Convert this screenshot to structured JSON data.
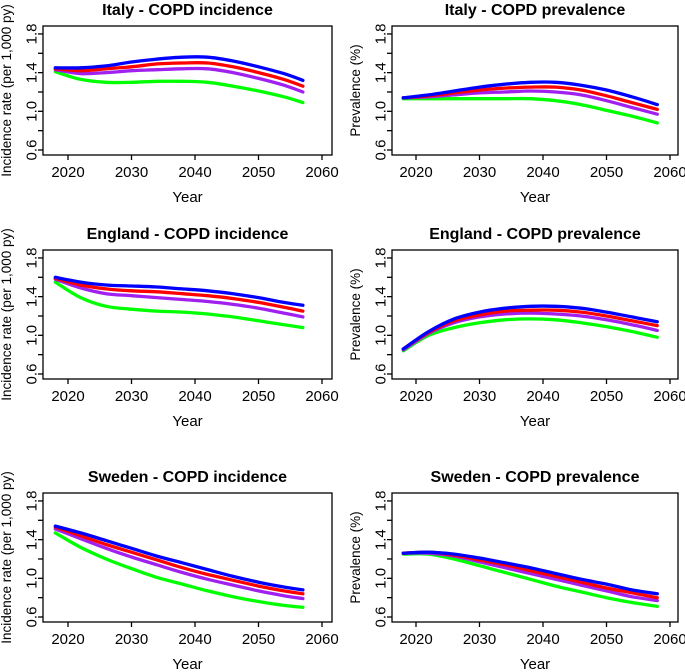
{
  "figure": {
    "background": "#ffffff",
    "grid": "off",
    "legend": "none",
    "series_colors": {
      "blue": "#0000ff",
      "red": "#ff0000",
      "purple": "#a020f0",
      "green": "#00ff00"
    }
  },
  "chart_data": [
    {
      "type": "line",
      "title": "Italy - COPD incidence",
      "xlabel": "Year",
      "ylabel": "Incidence rate (per 1,000 py)",
      "xlim": [
        2016,
        2061
      ],
      "ylim": [
        0.55,
        1.88
      ],
      "xticks": [
        2020,
        2030,
        2040,
        2050,
        2060
      ],
      "xtick_labels": [
        "2020",
        "2030",
        "2040",
        "2050",
        "2060"
      ],
      "yticks_major": [
        0.6,
        1.0,
        1.4,
        1.8
      ],
      "ytick_labels": [
        "0.6",
        "1.0",
        "1.4",
        "1.8"
      ],
      "yticks_minor": [
        0.8,
        1.2,
        1.6
      ],
      "x": [
        2018,
        2022,
        2026,
        2030,
        2034,
        2038,
        2042,
        2046,
        2050,
        2054,
        2057
      ],
      "series": [
        {
          "name": "blue",
          "color": "#0000ff",
          "values": [
            1.45,
            1.45,
            1.47,
            1.51,
            1.54,
            1.56,
            1.56,
            1.52,
            1.46,
            1.39,
            1.32
          ]
        },
        {
          "name": "red",
          "color": "#ff0000",
          "values": [
            1.44,
            1.42,
            1.44,
            1.46,
            1.49,
            1.5,
            1.5,
            1.46,
            1.4,
            1.33,
            1.26
          ]
        },
        {
          "name": "purple",
          "color": "#a020f0",
          "values": [
            1.43,
            1.39,
            1.4,
            1.42,
            1.43,
            1.44,
            1.44,
            1.4,
            1.34,
            1.27,
            1.2
          ]
        },
        {
          "name": "green",
          "color": "#00ff00",
          "values": [
            1.41,
            1.33,
            1.3,
            1.3,
            1.31,
            1.31,
            1.3,
            1.26,
            1.21,
            1.15,
            1.09
          ]
        }
      ]
    },
    {
      "type": "line",
      "title": "Italy - COPD prevalence",
      "xlabel": "Year",
      "ylabel": "Prevalence (%)",
      "xlim": [
        2016,
        2061
      ],
      "ylim": [
        0.55,
        1.88
      ],
      "xticks": [
        2020,
        2030,
        2040,
        2050,
        2060
      ],
      "xtick_labels": [
        "2020",
        "2030",
        "2040",
        "2050",
        "2060"
      ],
      "yticks_major": [
        0.6,
        1.0,
        1.4,
        1.8
      ],
      "ytick_labels": [
        "0.6",
        "1.0",
        "1.4",
        "1.8"
      ],
      "yticks_minor": [
        0.8,
        1.2,
        1.6
      ],
      "x": [
        2018,
        2022,
        2026,
        2030,
        2034,
        2038,
        2042,
        2046,
        2050,
        2054,
        2058
      ],
      "series": [
        {
          "name": "blue",
          "color": "#0000ff",
          "values": [
            1.14,
            1.17,
            1.21,
            1.25,
            1.28,
            1.3,
            1.3,
            1.27,
            1.22,
            1.15,
            1.07
          ]
        },
        {
          "name": "red",
          "color": "#ff0000",
          "values": [
            1.14,
            1.16,
            1.19,
            1.22,
            1.24,
            1.25,
            1.25,
            1.22,
            1.16,
            1.09,
            1.02
          ]
        },
        {
          "name": "purple",
          "color": "#a020f0",
          "values": [
            1.14,
            1.15,
            1.17,
            1.19,
            1.2,
            1.21,
            1.2,
            1.17,
            1.11,
            1.04,
            0.97
          ]
        },
        {
          "name": "green",
          "color": "#00ff00",
          "values": [
            1.13,
            1.13,
            1.13,
            1.13,
            1.13,
            1.13,
            1.11,
            1.07,
            1.01,
            0.95,
            0.88
          ]
        }
      ]
    },
    {
      "type": "line",
      "title": "England - COPD incidence",
      "xlabel": "Year",
      "ylabel": "Incidence rate (per 1,000 py)",
      "xlim": [
        2016,
        2061
      ],
      "ylim": [
        0.55,
        1.88
      ],
      "xticks": [
        2020,
        2030,
        2040,
        2050,
        2060
      ],
      "xtick_labels": [
        "2020",
        "2030",
        "2040",
        "2050",
        "2060"
      ],
      "yticks_major": [
        0.6,
        1.0,
        1.4,
        1.8
      ],
      "ytick_labels": [
        "0.6",
        "1.0",
        "1.4",
        "1.8"
      ],
      "yticks_minor": [
        0.8,
        1.2,
        1.6
      ],
      "x": [
        2018,
        2022,
        2026,
        2030,
        2034,
        2038,
        2042,
        2046,
        2050,
        2054,
        2057
      ],
      "series": [
        {
          "name": "blue",
          "color": "#0000ff",
          "values": [
            1.6,
            1.55,
            1.52,
            1.51,
            1.5,
            1.48,
            1.46,
            1.43,
            1.39,
            1.34,
            1.31
          ]
        },
        {
          "name": "red",
          "color": "#ff0000",
          "values": [
            1.59,
            1.52,
            1.48,
            1.46,
            1.45,
            1.43,
            1.41,
            1.38,
            1.34,
            1.29,
            1.25
          ]
        },
        {
          "name": "purple",
          "color": "#a020f0",
          "values": [
            1.58,
            1.49,
            1.43,
            1.41,
            1.39,
            1.37,
            1.35,
            1.32,
            1.28,
            1.23,
            1.19
          ]
        },
        {
          "name": "green",
          "color": "#00ff00",
          "values": [
            1.55,
            1.39,
            1.3,
            1.27,
            1.25,
            1.24,
            1.22,
            1.19,
            1.15,
            1.11,
            1.08
          ]
        }
      ]
    },
    {
      "type": "line",
      "title": "England - COPD prevalence",
      "xlabel": "Year",
      "ylabel": "Prevalence (%)",
      "xlim": [
        2016,
        2061
      ],
      "ylim": [
        0.55,
        1.88
      ],
      "xticks": [
        2020,
        2030,
        2040,
        2050,
        2060
      ],
      "xtick_labels": [
        "2020",
        "2030",
        "2040",
        "2050",
        "2060"
      ],
      "yticks_major": [
        0.6,
        1.0,
        1.4,
        1.8
      ],
      "ytick_labels": [
        "0.6",
        "1.0",
        "1.4",
        "1.8"
      ],
      "yticks_minor": [
        0.8,
        1.2,
        1.6
      ],
      "x": [
        2018,
        2022,
        2026,
        2030,
        2034,
        2038,
        2042,
        2046,
        2050,
        2054,
        2058
      ],
      "series": [
        {
          "name": "blue",
          "color": "#0000ff",
          "values": [
            0.86,
            1.04,
            1.17,
            1.24,
            1.28,
            1.3,
            1.3,
            1.28,
            1.24,
            1.19,
            1.14
          ]
        },
        {
          "name": "red",
          "color": "#ff0000",
          "values": [
            0.86,
            1.03,
            1.15,
            1.21,
            1.25,
            1.26,
            1.26,
            1.24,
            1.2,
            1.15,
            1.1
          ]
        },
        {
          "name": "purple",
          "color": "#a020f0",
          "values": [
            0.85,
            1.02,
            1.13,
            1.19,
            1.22,
            1.23,
            1.22,
            1.2,
            1.16,
            1.11,
            1.05
          ]
        },
        {
          "name": "green",
          "color": "#00ff00",
          "values": [
            0.84,
            1.0,
            1.08,
            1.13,
            1.16,
            1.17,
            1.16,
            1.13,
            1.09,
            1.04,
            0.98
          ]
        }
      ]
    },
    {
      "type": "line",
      "title": "Sweden - COPD incidence",
      "xlabel": "Year",
      "ylabel": "Incidence rate (per 1,000 py)",
      "xlim": [
        2016,
        2061
      ],
      "ylim": [
        0.55,
        1.88
      ],
      "xticks": [
        2020,
        2030,
        2040,
        2050,
        2060
      ],
      "xtick_labels": [
        "2020",
        "2030",
        "2040",
        "2050",
        "2060"
      ],
      "yticks_major": [
        0.6,
        1.0,
        1.4,
        1.8
      ],
      "ytick_labels": [
        "0.6",
        "1.0",
        "1.4",
        "1.8"
      ],
      "yticks_minor": [
        0.8,
        1.2,
        1.6
      ],
      "x": [
        2018,
        2022,
        2026,
        2030,
        2034,
        2038,
        2042,
        2046,
        2050,
        2054,
        2057
      ],
      "series": [
        {
          "name": "blue",
          "color": "#0000ff",
          "values": [
            1.54,
            1.47,
            1.39,
            1.31,
            1.23,
            1.16,
            1.09,
            1.02,
            0.96,
            0.91,
            0.88
          ]
        },
        {
          "name": "red",
          "color": "#ff0000",
          "values": [
            1.53,
            1.44,
            1.35,
            1.27,
            1.19,
            1.11,
            1.04,
            0.98,
            0.92,
            0.87,
            0.84
          ]
        },
        {
          "name": "purple",
          "color": "#a020f0",
          "values": [
            1.51,
            1.41,
            1.31,
            1.22,
            1.14,
            1.06,
            0.99,
            0.93,
            0.87,
            0.82,
            0.79
          ]
        },
        {
          "name": "green",
          "color": "#00ff00",
          "values": [
            1.47,
            1.32,
            1.2,
            1.1,
            1.01,
            0.94,
            0.87,
            0.81,
            0.76,
            0.72,
            0.7
          ]
        }
      ]
    },
    {
      "type": "line",
      "title": "Sweden - COPD prevalence",
      "xlabel": "Year",
      "ylabel": "Prevalence (%)",
      "xlim": [
        2016,
        2061
      ],
      "ylim": [
        0.55,
        1.88
      ],
      "xticks": [
        2020,
        2030,
        2040,
        2050,
        2060
      ],
      "xtick_labels": [
        "2020",
        "2030",
        "2040",
        "2050",
        "2060"
      ],
      "yticks_major": [
        0.6,
        1.0,
        1.4,
        1.8
      ],
      "ytick_labels": [
        "0.6",
        "1.0",
        "1.4",
        "1.8"
      ],
      "yticks_minor": [
        0.8,
        1.2,
        1.6
      ],
      "x": [
        2018,
        2022,
        2026,
        2030,
        2034,
        2038,
        2042,
        2046,
        2050,
        2054,
        2058
      ],
      "series": [
        {
          "name": "blue",
          "color": "#0000ff",
          "values": [
            1.26,
            1.27,
            1.25,
            1.21,
            1.16,
            1.11,
            1.05,
            0.99,
            0.94,
            0.88,
            0.84
          ]
        },
        {
          "name": "red",
          "color": "#ff0000",
          "values": [
            1.26,
            1.27,
            1.24,
            1.19,
            1.14,
            1.08,
            1.02,
            0.96,
            0.9,
            0.85,
            0.8
          ]
        },
        {
          "name": "purple",
          "color": "#a020f0",
          "values": [
            1.26,
            1.26,
            1.23,
            1.17,
            1.11,
            1.05,
            0.99,
            0.93,
            0.87,
            0.81,
            0.77
          ]
        },
        {
          "name": "green",
          "color": "#00ff00",
          "values": [
            1.25,
            1.25,
            1.2,
            1.13,
            1.06,
            0.99,
            0.92,
            0.86,
            0.8,
            0.75,
            0.71
          ]
        }
      ]
    }
  ]
}
